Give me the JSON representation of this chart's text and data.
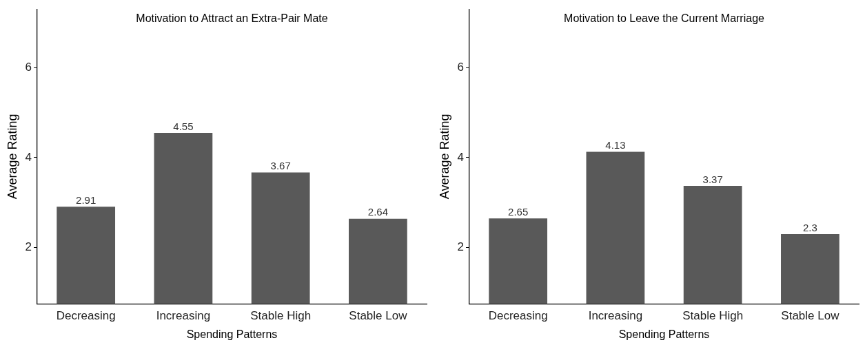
{
  "chart_data": [
    {
      "type": "bar",
      "title": "Motivation to Attract an Extra-Pair Mate",
      "xlabel": "Spending Patterns",
      "ylabel": "Average Rating",
      "categories": [
        "Decreasing",
        "Increasing",
        "Stable High",
        "Stable Low"
      ],
      "values": [
        2.91,
        4.55,
        3.67,
        2.64
      ],
      "color": "#595959",
      "ylim": [
        0.75,
        7.3
      ],
      "yticks": [
        2,
        4,
        6
      ],
      "data_labels": true,
      "grid": false,
      "legend": false
    },
    {
      "type": "bar",
      "title": "Motivation to Leave the Current Marriage",
      "xlabel": "Spending Patterns",
      "ylabel": "Average Rating",
      "categories": [
        "Decreasing",
        "Increasing",
        "Stable High",
        "Stable Low"
      ],
      "values": [
        2.65,
        4.13,
        3.37,
        2.3
      ],
      "color": "#595959",
      "ylim": [
        0.75,
        7.3
      ],
      "yticks": [
        2,
        4,
        6
      ],
      "data_labels": true,
      "grid": false,
      "legend": false
    }
  ]
}
